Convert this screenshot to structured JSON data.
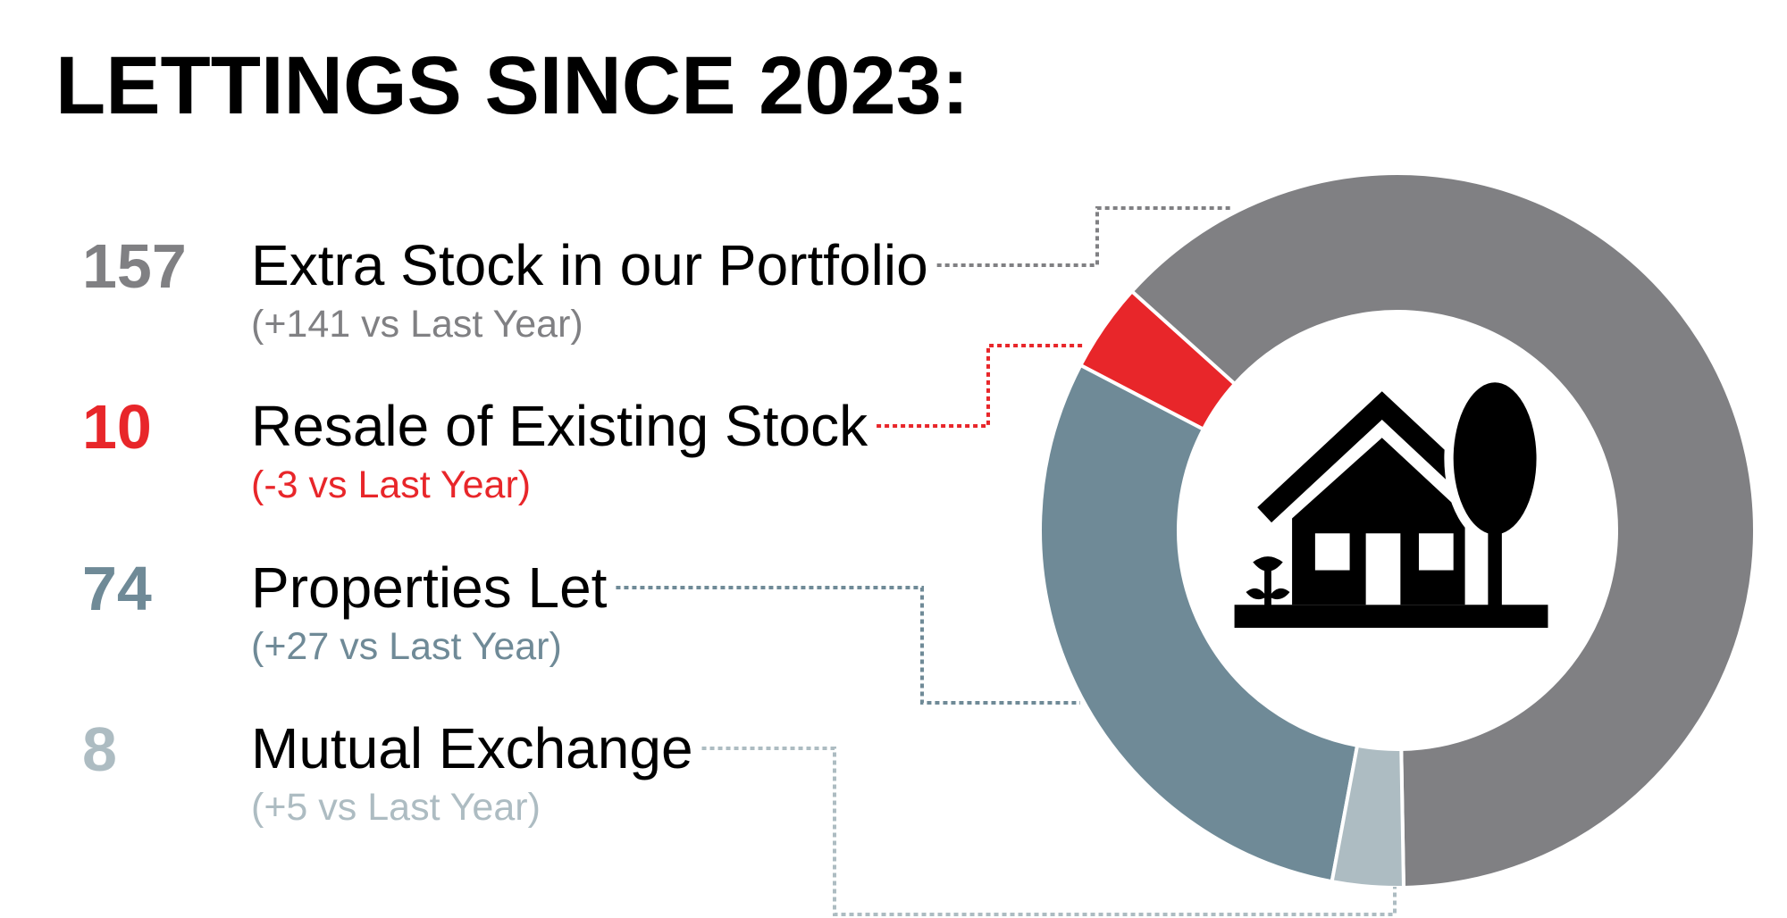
{
  "chart_data": {
    "type": "pie",
    "title": "LETTINGS SINCE 2023:",
    "categories": [
      "Extra Stock in our Portfolio",
      "Resale of Existing Stock",
      "Properties Let",
      "Mutual Exchange"
    ],
    "values": [
      157,
      10,
      74,
      8
    ],
    "changes": [
      "(+141 vs Last Year)",
      "(-3 vs Last Year)",
      "(+27 vs Last Year)",
      "(+5 vs Last Year)"
    ],
    "colors": [
      "#808083",
      "#e8262a",
      "#6f8a97",
      "#adbcc2"
    ]
  }
}
